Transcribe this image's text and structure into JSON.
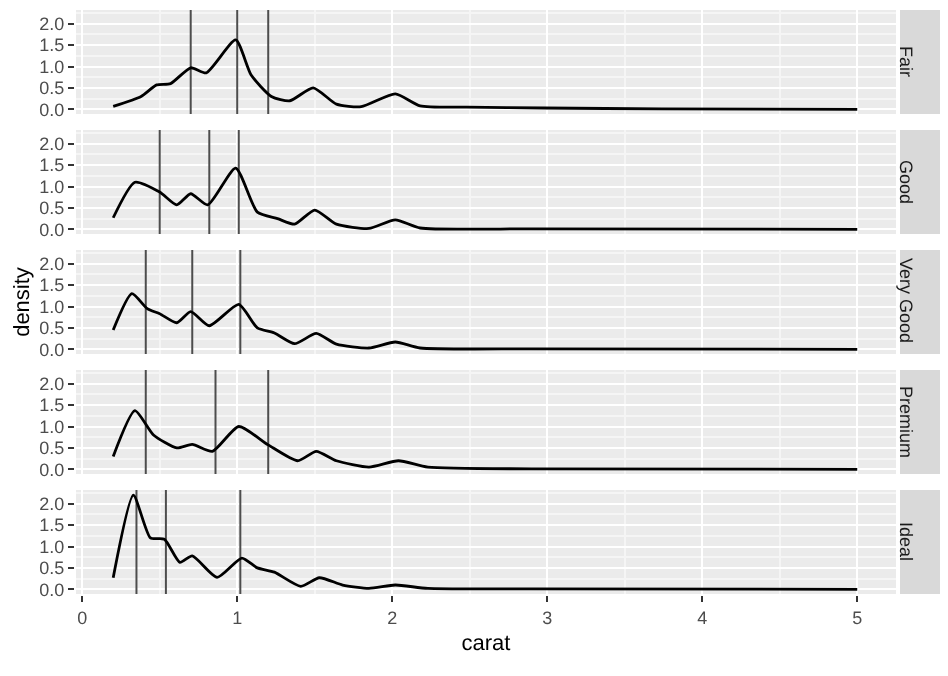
{
  "chart_data": [
    {
      "type": "line",
      "title": "Fair",
      "tick_labels": "y",
      "grid": true,
      "xlim": [
        -0.04,
        5.25
      ],
      "ylim": [
        -0.11,
        2.32
      ],
      "xticks": [
        0,
        1,
        2,
        3,
        4,
        5
      ],
      "yticks": [
        {
          "value": 0,
          "label": "0.0"
        },
        {
          "value": 0.5,
          "label": "0.5"
        },
        {
          "value": 1,
          "label": "1.0"
        },
        {
          "value": 1.5,
          "label": "1.5"
        },
        {
          "value": 2,
          "label": "2.0"
        }
      ],
      "x": [
        0.2,
        0.38,
        0.48,
        0.57,
        0.7,
        0.8,
        0.99,
        1.09,
        1.22,
        1.34,
        1.49,
        1.64,
        1.8,
        2.02,
        2.18,
        2.48,
        2.98,
        3.74,
        5.0
      ],
      "series": [
        {
          "color": "#000000",
          "values": [
            0.07,
            0.3,
            0.57,
            0.6,
            0.97,
            0.85,
            1.62,
            0.8,
            0.3,
            0.2,
            0.5,
            0.12,
            0.06,
            0.36,
            0.08,
            0.05,
            0.03,
            0.01,
            0.0
          ]
        }
      ],
      "ref_lines": [
        {
          "axis": "x",
          "value": 0.7,
          "color": "#4d4d4d"
        },
        {
          "axis": "x",
          "value": 1.0,
          "color": "#4d4d4d"
        },
        {
          "axis": "x",
          "value": 1.2,
          "color": "#4d4d4d"
        }
      ]
    },
    {
      "type": "line",
      "title": "Good",
      "tick_labels": "y",
      "grid": true,
      "xlim": [
        -0.04,
        5.25
      ],
      "ylim": [
        -0.11,
        2.32
      ],
      "xticks": [
        0,
        1,
        2,
        3,
        4,
        5
      ],
      "yticks": [
        {
          "value": 0,
          "label": "0.0"
        },
        {
          "value": 0.5,
          "label": "0.5"
        },
        {
          "value": 1,
          "label": "1.0"
        },
        {
          "value": 1.5,
          "label": "1.5"
        },
        {
          "value": 2,
          "label": "2.0"
        }
      ],
      "x": [
        0.2,
        0.34,
        0.5,
        0.61,
        0.7,
        0.81,
        0.99,
        1.13,
        1.26,
        1.37,
        1.5,
        1.64,
        1.85,
        2.02,
        2.18,
        2.9,
        5.0
      ],
      "series": [
        {
          "color": "#000000",
          "values": [
            0.27,
            1.1,
            0.87,
            0.57,
            0.83,
            0.57,
            1.43,
            0.4,
            0.25,
            0.12,
            0.45,
            0.12,
            0.02,
            0.22,
            0.03,
            0.01,
            0.0
          ]
        }
      ],
      "ref_lines": [
        {
          "axis": "x",
          "value": 0.5,
          "color": "#4d4d4d"
        },
        {
          "axis": "x",
          "value": 0.82,
          "color": "#4d4d4d"
        },
        {
          "axis": "x",
          "value": 1.01,
          "color": "#4d4d4d"
        }
      ]
    },
    {
      "type": "line",
      "title": "Very Good",
      "ylabel": "density",
      "tick_labels": "y",
      "grid": true,
      "xlim": [
        -0.04,
        5.25
      ],
      "ylim": [
        -0.11,
        2.32
      ],
      "xticks": [
        0,
        1,
        2,
        3,
        4,
        5
      ],
      "yticks": [
        {
          "value": 0,
          "label": "0.0"
        },
        {
          "value": 0.5,
          "label": "0.5"
        },
        {
          "value": 1,
          "label": "1.0"
        },
        {
          "value": 1.5,
          "label": "1.5"
        },
        {
          "value": 2,
          "label": "2.0"
        }
      ],
      "x": [
        0.2,
        0.32,
        0.42,
        0.5,
        0.61,
        0.7,
        0.82,
        1.01,
        1.13,
        1.24,
        1.37,
        1.51,
        1.64,
        1.85,
        2.02,
        2.18,
        2.9,
        5.0
      ],
      "series": [
        {
          "color": "#000000",
          "values": [
            0.45,
            1.3,
            0.95,
            0.83,
            0.62,
            0.88,
            0.55,
            1.05,
            0.5,
            0.38,
            0.13,
            0.37,
            0.12,
            0.03,
            0.17,
            0.03,
            0.01,
            0.0
          ]
        }
      ],
      "ref_lines": [
        {
          "axis": "x",
          "value": 0.41,
          "color": "#4d4d4d"
        },
        {
          "axis": "x",
          "value": 0.71,
          "color": "#4d4d4d"
        },
        {
          "axis": "x",
          "value": 1.02,
          "color": "#4d4d4d"
        }
      ]
    },
    {
      "type": "line",
      "title": "Premium",
      "tick_labels": "y",
      "grid": true,
      "xlim": [
        -0.04,
        5.25
      ],
      "ylim": [
        -0.11,
        2.32
      ],
      "xticks": [
        0,
        1,
        2,
        3,
        4,
        5
      ],
      "yticks": [
        {
          "value": 0,
          "label": "0.0"
        },
        {
          "value": 0.5,
          "label": "0.5"
        },
        {
          "value": 1,
          "label": "1.0"
        },
        {
          "value": 1.5,
          "label": "1.5"
        },
        {
          "value": 2,
          "label": "2.0"
        }
      ],
      "x": [
        0.2,
        0.34,
        0.46,
        0.61,
        0.71,
        0.84,
        1.01,
        1.2,
        1.39,
        1.51,
        1.64,
        1.85,
        2.04,
        2.23,
        2.9,
        5.0
      ],
      "series": [
        {
          "color": "#000000",
          "values": [
            0.3,
            1.37,
            0.8,
            0.5,
            0.58,
            0.42,
            1.0,
            0.57,
            0.2,
            0.42,
            0.2,
            0.05,
            0.2,
            0.05,
            0.01,
            0.0
          ]
        }
      ],
      "ref_lines": [
        {
          "axis": "x",
          "value": 0.41,
          "color": "#4d4d4d"
        },
        {
          "axis": "x",
          "value": 0.86,
          "color": "#4d4d4d"
        },
        {
          "axis": "x",
          "value": 1.2,
          "color": "#4d4d4d"
        }
      ]
    },
    {
      "type": "line",
      "title": "Ideal",
      "xlabel": "carat",
      "grid": true,
      "xlim": [
        -0.04,
        5.25
      ],
      "ylim": [
        -0.11,
        2.32
      ],
      "xticks": [
        0,
        1,
        2,
        3,
        4,
        5
      ],
      "yticks": [
        {
          "value": 0,
          "label": "0.0"
        },
        {
          "value": 0.5,
          "label": "0.5"
        },
        {
          "value": 1,
          "label": "1.0"
        },
        {
          "value": 1.5,
          "label": "1.5"
        },
        {
          "value": 2,
          "label": "2.0"
        }
      ],
      "x": [
        0.2,
        0.33,
        0.44,
        0.53,
        0.63,
        0.71,
        0.87,
        1.03,
        1.13,
        1.24,
        1.41,
        1.53,
        1.68,
        1.85,
        2.02,
        2.23,
        2.9,
        5.0
      ],
      "series": [
        {
          "color": "#000000",
          "values": [
            0.27,
            2.2,
            1.2,
            1.17,
            0.63,
            0.78,
            0.28,
            0.73,
            0.5,
            0.4,
            0.07,
            0.27,
            0.1,
            0.02,
            0.1,
            0.02,
            0.01,
            0.0
          ]
        }
      ],
      "ref_lines": [
        {
          "axis": "x",
          "value": 0.35,
          "color": "#4d4d4d"
        },
        {
          "axis": "x",
          "value": 0.54,
          "color": "#4d4d4d"
        },
        {
          "axis": "x",
          "value": 1.02,
          "color": "#4d4d4d"
        }
      ]
    }
  ]
}
